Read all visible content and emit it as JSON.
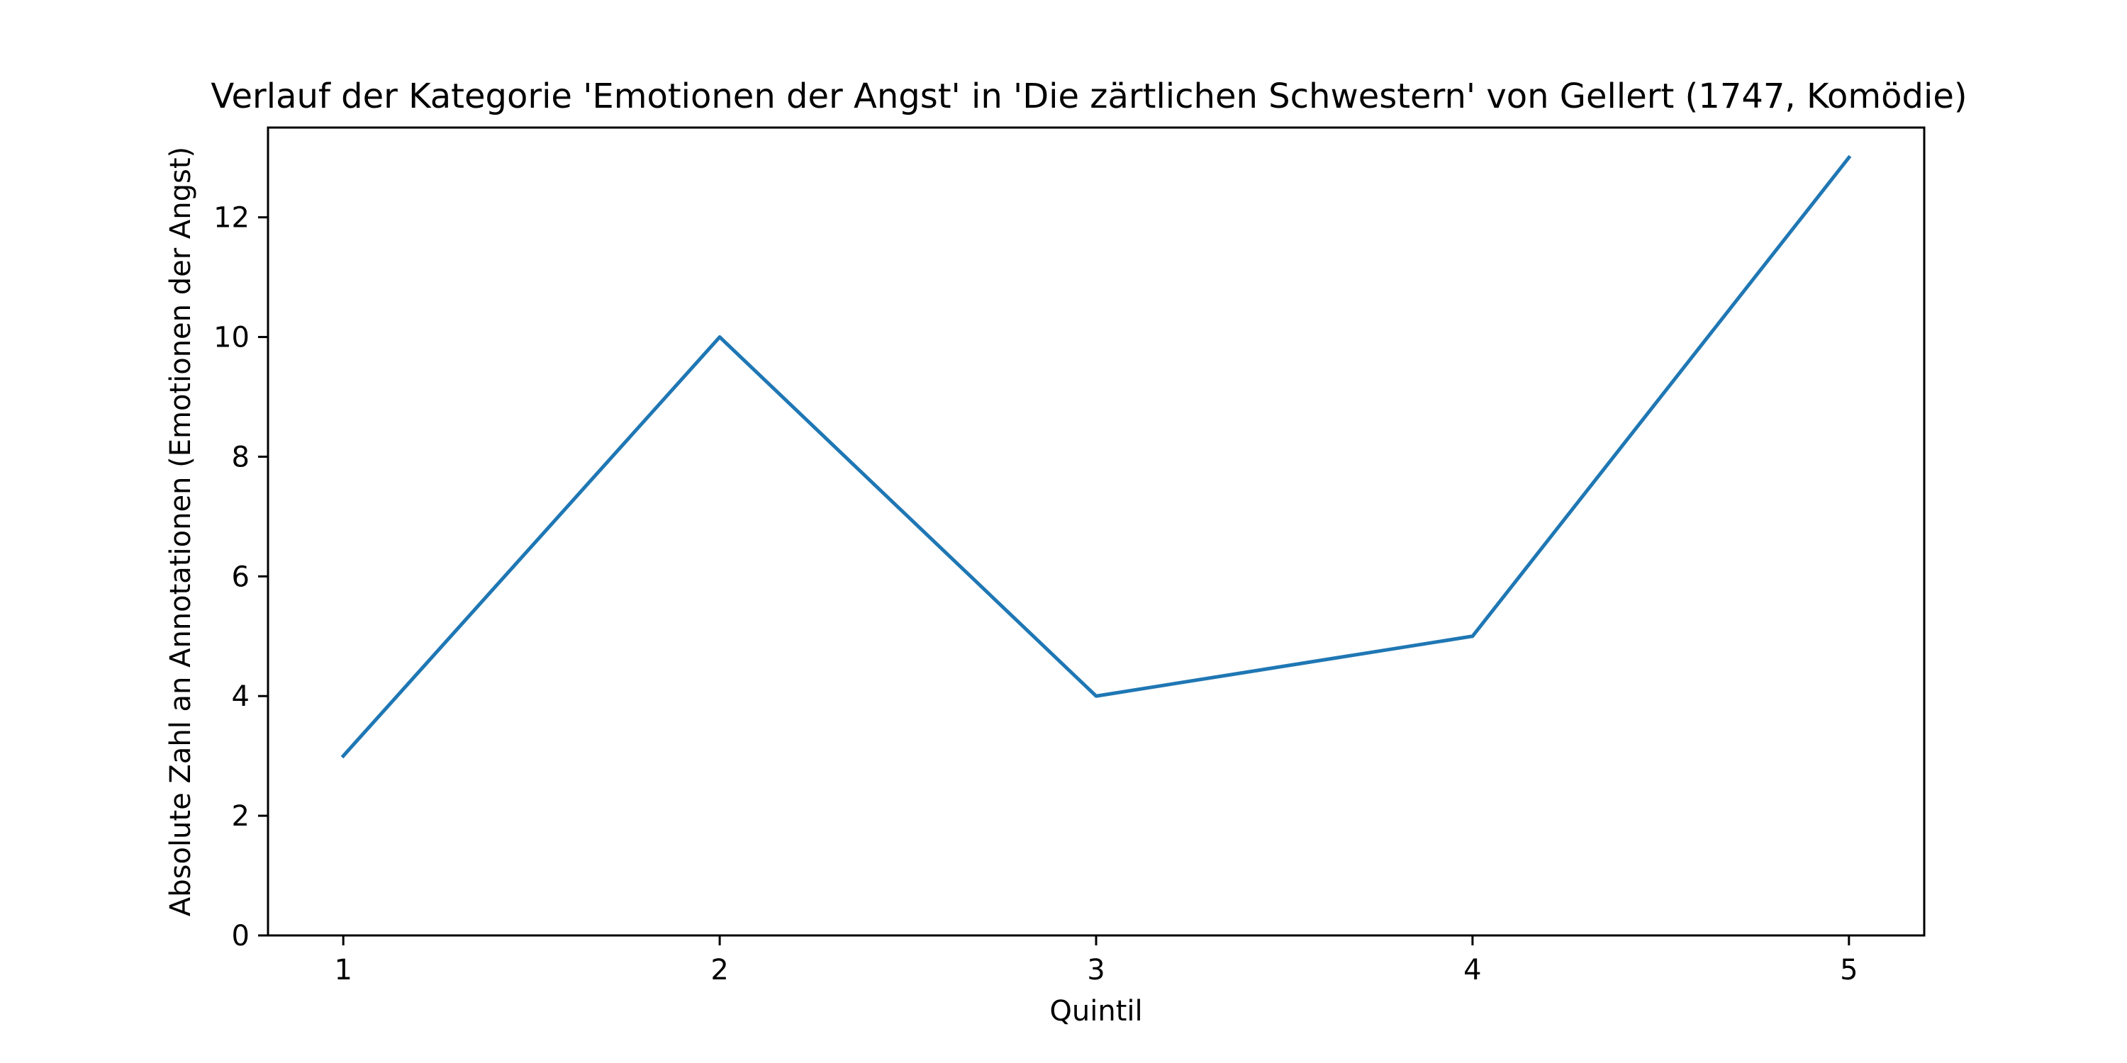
{
  "chart_data": {
    "type": "line",
    "title": "Verlauf der Kategorie 'Emotionen der Angst' in 'Die zärtlichen Schwestern' von Gellert (1747, Komödie)",
    "xlabel": "Quintil",
    "ylabel": "Absolute Zahl an Annotationen (Emotionen der Angst)",
    "x": [
      1,
      2,
      3,
      4,
      5
    ],
    "xticks": [
      "1",
      "2",
      "3",
      "4",
      "5"
    ],
    "yticks": [
      "0",
      "2",
      "4",
      "6",
      "8",
      "10",
      "12"
    ],
    "xlim": [
      0.8,
      5.2
    ],
    "ylim": [
      0,
      13.5
    ],
    "grid": false,
    "series": [
      {
        "values": [
          3,
          10,
          4,
          5,
          13
        ],
        "color": "#1f77b4"
      }
    ]
  }
}
